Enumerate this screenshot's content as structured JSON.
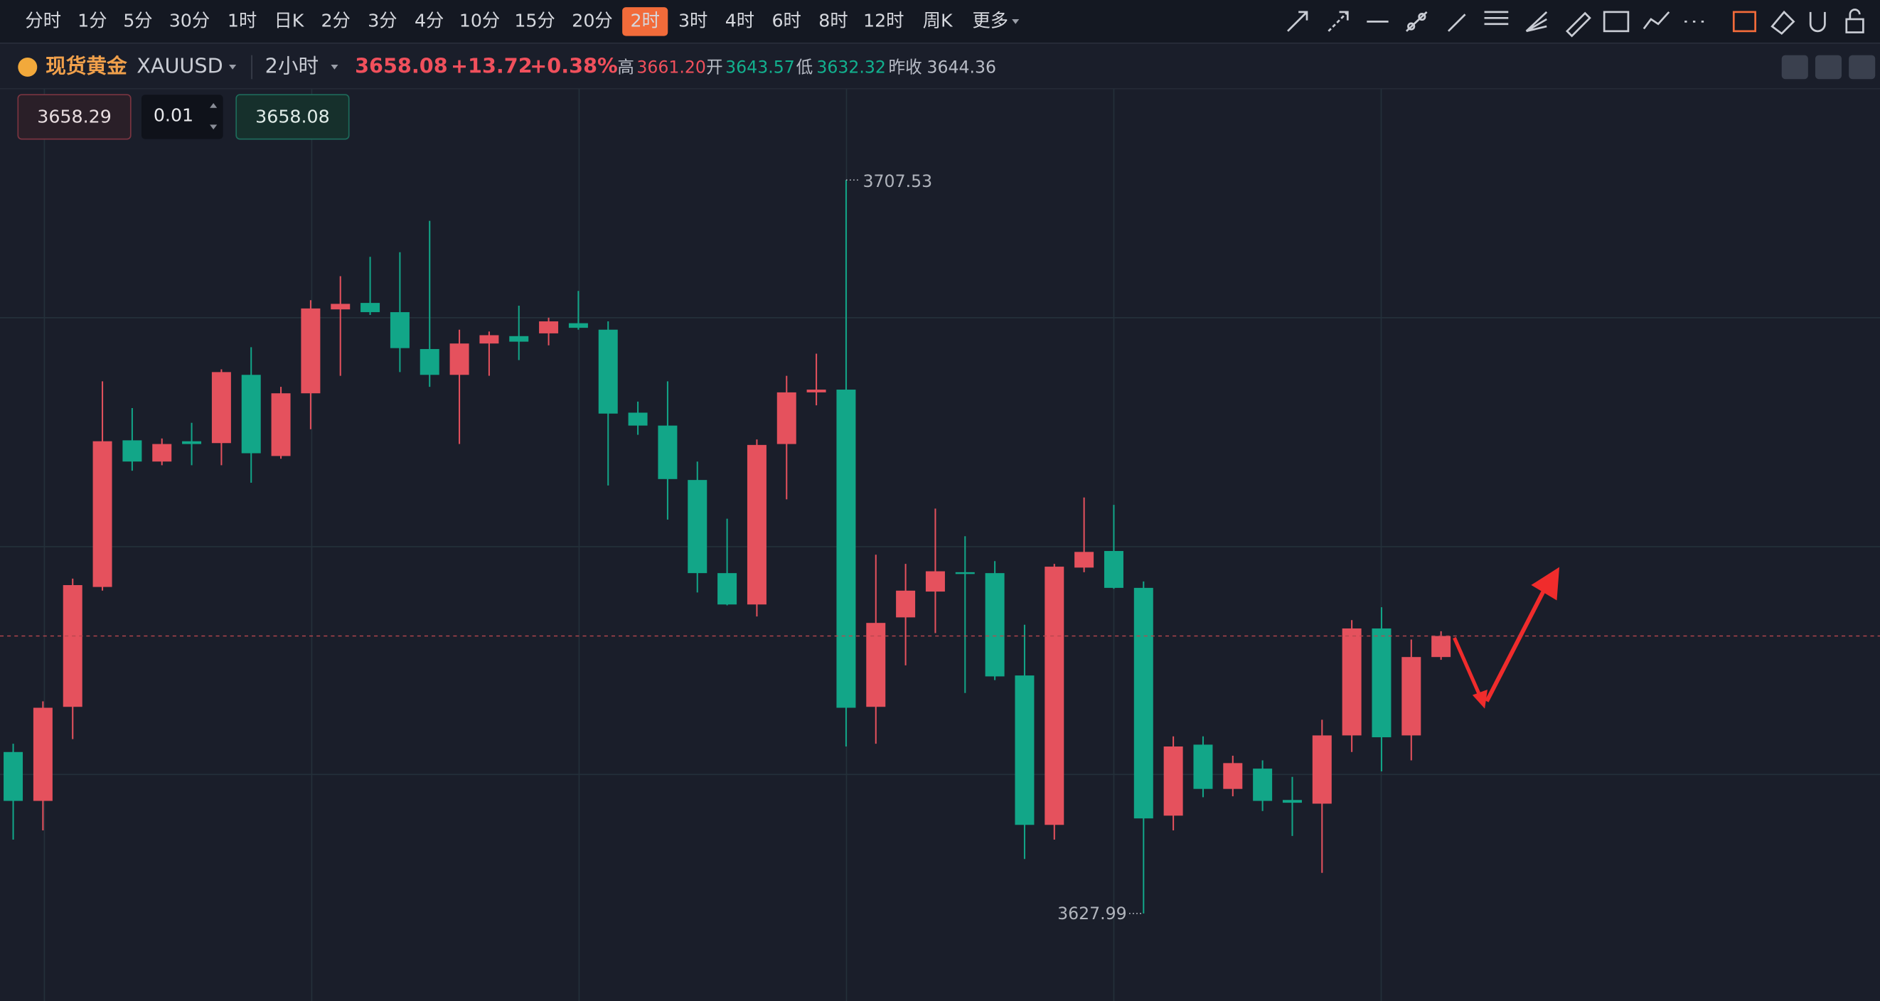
{
  "toolbar": {
    "intervals": [
      "分时",
      "1分",
      "5分",
      "30分",
      "1时",
      "日K",
      "2分",
      "3分",
      "4分",
      "10分",
      "15分",
      "20分",
      "2时",
      "3时",
      "4时",
      "6时",
      "8时",
      "12时",
      "周K",
      "更多"
    ],
    "selected_interval": 12
  },
  "quote": {
    "name": "现货黄金",
    "symbol": "XAUUSD",
    "period": "2小时",
    "price": "3658.08",
    "change": "+13.72",
    "change_pct": "+0.38%",
    "high_label": "高",
    "high": "3661.20",
    "open_label": "开",
    "open": "3643.57",
    "low_label": "低",
    "low": "3632.32",
    "prev_close_label": "昨收",
    "prev_close": "3644.36"
  },
  "order": {
    "sell_price": "3658.29",
    "quantity": "0.01",
    "buy_price": "3658.08"
  },
  "chart_data": {
    "type": "candlestick",
    "up_color": "#e5515d",
    "down_color": "#12a688",
    "ylim": [
      3618.5,
      3717.3
    ],
    "open": [
      3645.5,
      3640.2,
      3650.4,
      3663.4,
      3679.3,
      3677.0,
      3679.2,
      3679.0,
      3686.4,
      3677.6,
      3684.4,
      3693.5,
      3694.2,
      3693.2,
      3689.2,
      3686.4,
      3689.8,
      3690.6,
      3690.9,
      3692.0,
      3691.3,
      3682.3,
      3680.9,
      3675.0,
      3664.9,
      3661.5,
      3678.9,
      3684.5,
      3684.8,
      3650.4,
      3660.1,
      3662.9,
      3665.0,
      3664.9,
      3653.8,
      3637.6,
      3665.5,
      3667.3,
      3663.3,
      3638.6,
      3646.3,
      3641.5,
      3643.7,
      3640.3,
      3639.9,
      3647.3,
      3658.9,
      3647.3,
      3655.8
    ],
    "high": [
      3646.4,
      3651.0,
      3664.3,
      3685.7,
      3682.8,
      3679.5,
      3681.2,
      3687.0,
      3689.4,
      3685.1,
      3694.5,
      3697.1,
      3699.2,
      3699.7,
      3703.1,
      3691.3,
      3691.1,
      3693.9,
      3692.6,
      3695.5,
      3692.2,
      3683.5,
      3685.7,
      3677.0,
      3670.8,
      3679.4,
      3686.3,
      3688.7,
      3707.53,
      3666.9,
      3665.9,
      3671.9,
      3668.9,
      3666.2,
      3659.3,
      3665.9,
      3673.1,
      3672.3,
      3664.0,
      3647.2,
      3647.2,
      3645.1,
      3644.6,
      3642.8,
      3649.0,
      3659.8,
      3661.2,
      3657.7,
      3658.6
    ],
    "low": [
      3636.0,
      3637.0,
      3646.9,
      3663.0,
      3676.0,
      3676.6,
      3676.6,
      3676.6,
      3674.7,
      3677.3,
      3680.5,
      3686.3,
      3692.9,
      3686.7,
      3685.1,
      3678.9,
      3686.3,
      3688.0,
      3689.6,
      3691.3,
      3674.4,
      3679.9,
      3670.7,
      3662.8,
      3661.4,
      3660.2,
      3672.9,
      3683.1,
      3646.1,
      3646.4,
      3654.9,
      3658.4,
      3651.9,
      3653.3,
      3633.9,
      3636.0,
      3665.0,
      3663.2,
      3627.99,
      3637.0,
      3640.6,
      3640.7,
      3639.1,
      3636.4,
      3632.4,
      3645.5,
      3643.4,
      3644.6,
      3655.5
    ],
    "close": [
      3640.2,
      3650.3,
      3663.6,
      3679.2,
      3677.0,
      3678.9,
      3678.9,
      3686.7,
      3677.9,
      3684.4,
      3693.6,
      3694.1,
      3693.2,
      3689.3,
      3686.4,
      3689.8,
      3690.7,
      3690.0,
      3692.2,
      3691.5,
      3682.2,
      3680.9,
      3675.1,
      3664.9,
      3661.5,
      3678.8,
      3684.5,
      3684.8,
      3650.3,
      3659.5,
      3663.0,
      3665.1,
      3664.9,
      3653.7,
      3637.6,
      3665.6,
      3667.2,
      3663.3,
      3638.3,
      3646.1,
      3641.5,
      3644.3,
      3640.2,
      3640.0,
      3647.3,
      3658.9,
      3647.1,
      3655.8,
      3658.08
    ]
  }
}
